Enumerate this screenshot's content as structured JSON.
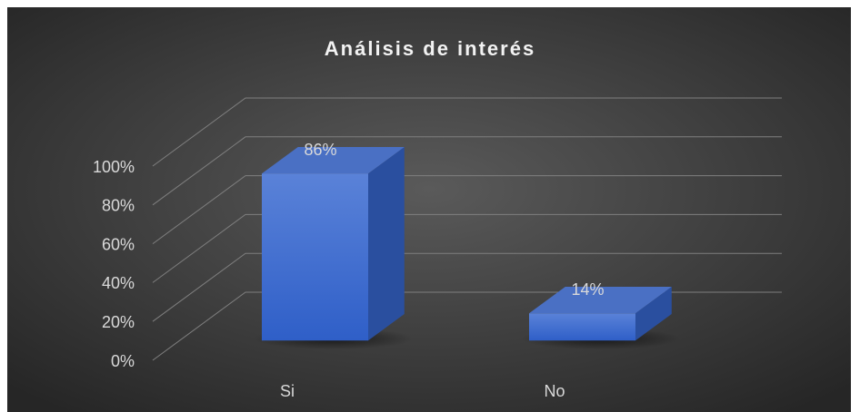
{
  "chart_data": {
    "type": "bar3d",
    "title": "Análisis de interés",
    "categories": [
      "Si",
      "No"
    ],
    "values": [
      86,
      14
    ],
    "value_labels": [
      "86%",
      "14%"
    ],
    "color": "#3c6ad3",
    "ylim": [
      0,
      100
    ],
    "yticks": [
      {
        "value": 0,
        "label": "0%"
      },
      {
        "value": 20,
        "label": "20%"
      },
      {
        "value": 40,
        "label": "40%"
      },
      {
        "value": 60,
        "label": "60%"
      },
      {
        "value": 80,
        "label": "80%"
      },
      {
        "value": 100,
        "label": "100%"
      }
    ],
    "grid": true
  }
}
